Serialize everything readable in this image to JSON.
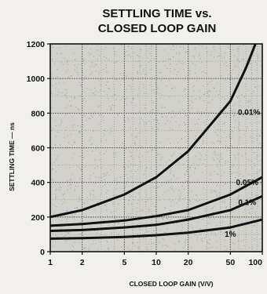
{
  "chart_data": {
    "type": "line",
    "title_line1": "SETTLING TIME vs.",
    "title_line2": "CLOSED LOOP GAIN",
    "xlabel": "CLOSED LOOP GAIN (V/V)",
    "ylabel": "SETTLING TIME — ns",
    "x_scale": "log",
    "xlim": [
      1,
      100
    ],
    "ylim": [
      0,
      1200
    ],
    "grid": true,
    "x_ticks": [
      1,
      2,
      5,
      10,
      20,
      50,
      100
    ],
    "x_tick_labels": [
      "1",
      "2",
      "5",
      "10",
      "20",
      "50",
      "100"
    ],
    "y_ticks": [
      0,
      200,
      400,
      600,
      800,
      1000,
      1200
    ],
    "y_tick_labels": [
      "0",
      "200",
      "400",
      "600",
      "800",
      "1000",
      "1200"
    ],
    "series": [
      {
        "name": "0.01%",
        "x": [
          1,
          2,
          5,
          10,
          20,
          50,
          70,
          100
        ],
        "y": [
          200,
          240,
          330,
          430,
          580,
          870,
          1060,
          1300
        ]
      },
      {
        "name": "0.05%",
        "x": [
          1,
          2,
          5,
          10,
          20,
          50,
          100
        ],
        "y": [
          150,
          160,
          180,
          205,
          240,
          330,
          430
        ]
      },
      {
        "name": "0.1%",
        "x": [
          1,
          2,
          5,
          10,
          20,
          50,
          100
        ],
        "y": [
          120,
          125,
          140,
          155,
          185,
          240,
          320
        ]
      },
      {
        "name": "1%",
        "x": [
          1,
          2,
          5,
          10,
          20,
          50,
          100
        ],
        "y": [
          75,
          78,
          85,
          95,
          110,
          140,
          185
        ]
      }
    ],
    "curve_labels": [
      {
        "text": "0.01%",
        "x": 75,
        "y": 790
      },
      {
        "text": "0.05%",
        "x": 72,
        "y": 385
      },
      {
        "text": "0.1%",
        "x": 72,
        "y": 270
      },
      {
        "text": "1%",
        "x": 50,
        "y": 85
      }
    ]
  }
}
